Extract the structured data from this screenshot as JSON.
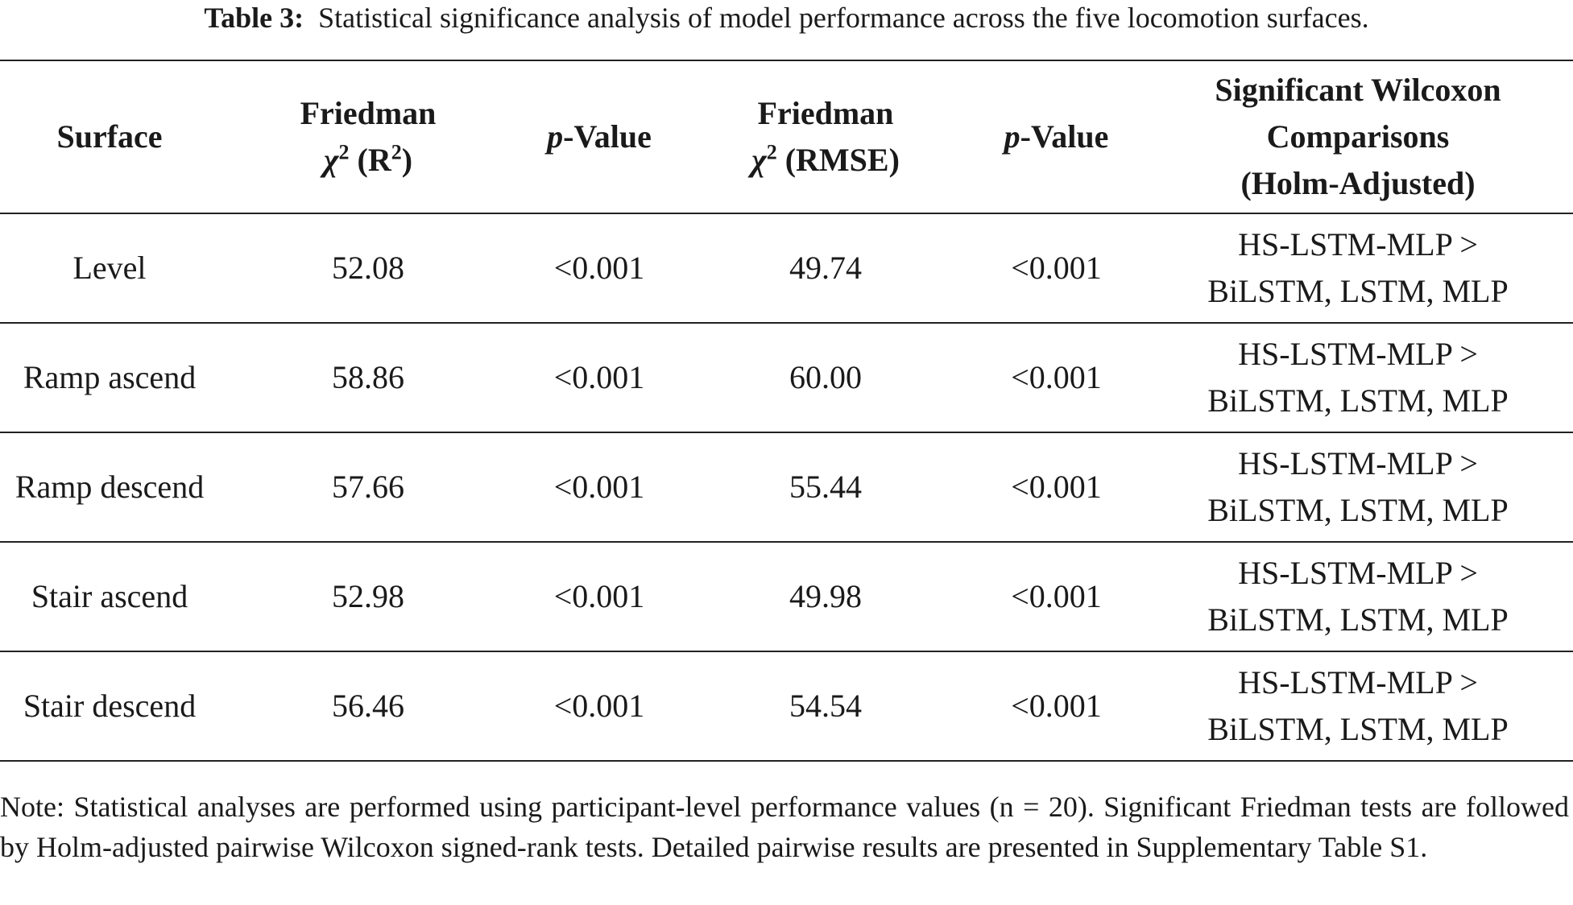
{
  "caption": {
    "label": "Table 3:",
    "text": "Statistical significance analysis of model performance across the five locomotion surfaces."
  },
  "headers": {
    "surface": "Surface",
    "friedman_r2_top": "Friedman",
    "friedman_r2_chi": "χ",
    "friedman_r2_sup": "2",
    "friedman_r2_unit_open": " (R",
    "friedman_r2_unit_sup": "2",
    "friedman_r2_unit_close": ")",
    "p_italic": "p",
    "p_rest": "-Value",
    "friedman_rmse_top": "Friedman",
    "friedman_rmse_chi": "χ",
    "friedman_rmse_sup": "2",
    "friedman_rmse_unit": " (RMSE)",
    "p2_italic": "p",
    "p2_rest": "-Value",
    "wilcoxon_line1": "Significant Wilcoxon",
    "wilcoxon_line2": "Comparisons",
    "wilcoxon_line3": "(Holm-Adjusted)"
  },
  "rows": [
    {
      "surface": "Level",
      "chi_r2": "52.08",
      "p_r2": "<0.001",
      "chi_rmse": "49.74",
      "p_rmse": "<0.001",
      "wilcoxon_1": "HS-LSTM-MLP >",
      "wilcoxon_2": "BiLSTM, LSTM, MLP"
    },
    {
      "surface": "Ramp ascend",
      "chi_r2": "58.86",
      "p_r2": "<0.001",
      "chi_rmse": "60.00",
      "p_rmse": "<0.001",
      "wilcoxon_1": "HS-LSTM-MLP >",
      "wilcoxon_2": "BiLSTM, LSTM, MLP"
    },
    {
      "surface": "Ramp descend",
      "chi_r2": "57.66",
      "p_r2": "<0.001",
      "chi_rmse": "55.44",
      "p_rmse": "<0.001",
      "wilcoxon_1": "HS-LSTM-MLP >",
      "wilcoxon_2": "BiLSTM, LSTM, MLP"
    },
    {
      "surface": "Stair ascend",
      "chi_r2": "52.98",
      "p_r2": "<0.001",
      "chi_rmse": "49.98",
      "p_rmse": "<0.001",
      "wilcoxon_1": "HS-LSTM-MLP >",
      "wilcoxon_2": "BiLSTM, LSTM, MLP"
    },
    {
      "surface": "Stair descend",
      "chi_r2": "56.46",
      "p_r2": "<0.001",
      "chi_rmse": "54.54",
      "p_rmse": "<0.001",
      "wilcoxon_1": "HS-LSTM-MLP >",
      "wilcoxon_2": "BiLSTM, LSTM, MLP"
    }
  ],
  "note": "Note: Statistical analyses are performed using participant-level performance values (n = 20). Significant Friedman tests are followed by Holm-adjusted pairwise Wilcoxon signed-rank tests. Detailed pairwise results are presented in Supplementary Table S1."
}
